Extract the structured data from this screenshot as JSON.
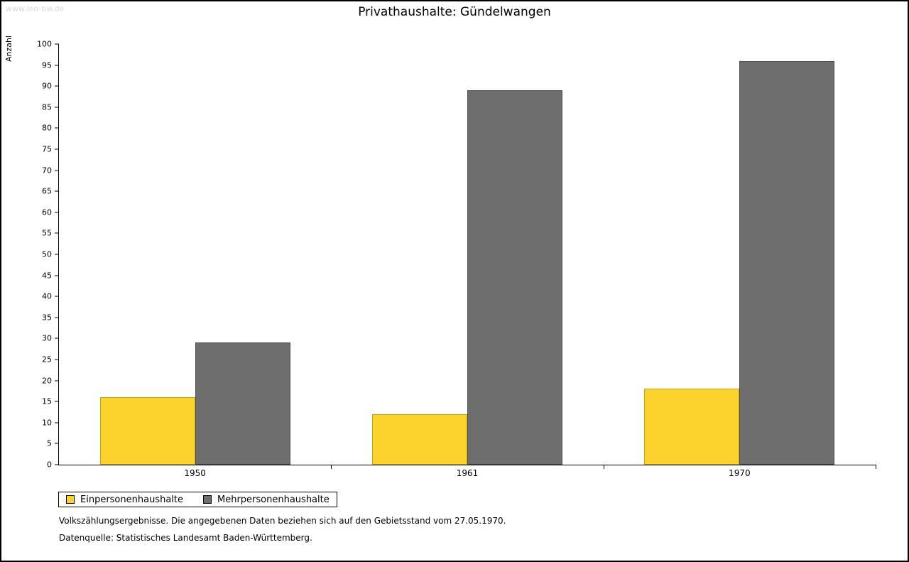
{
  "watermark": "www.leo-bw.de",
  "title": "Privathaushalte: Gündelwangen",
  "footnotes": {
    "line1": "Volkszählungsergebnisse. Die angegebenen Daten beziehen sich auf den Gebietsstand vom 27.05.1970.",
    "line2": "Datenquelle: Statistisches Landesamt Baden-Württemberg."
  },
  "chart_data": {
    "type": "bar",
    "title": "Privathaushalte: Gündelwangen",
    "categories": [
      "1950",
      "1961",
      "1970"
    ],
    "series": [
      {
        "name": "Einpersonenhaushalte",
        "color": "#fbd32c",
        "edge": "#c7a40a",
        "values": [
          16,
          12,
          18
        ]
      },
      {
        "name": "Mehrpersonenhaushalte",
        "color": "#6e6e6e",
        "edge": "#4d4d4d",
        "values": [
          29,
          89,
          96
        ]
      }
    ],
    "xlabel": "",
    "ylabel": "Anzahl",
    "ylim": [
      0,
      100
    ],
    "ytick_step": 5,
    "grid": false,
    "legend_position": "bottom-left"
  }
}
